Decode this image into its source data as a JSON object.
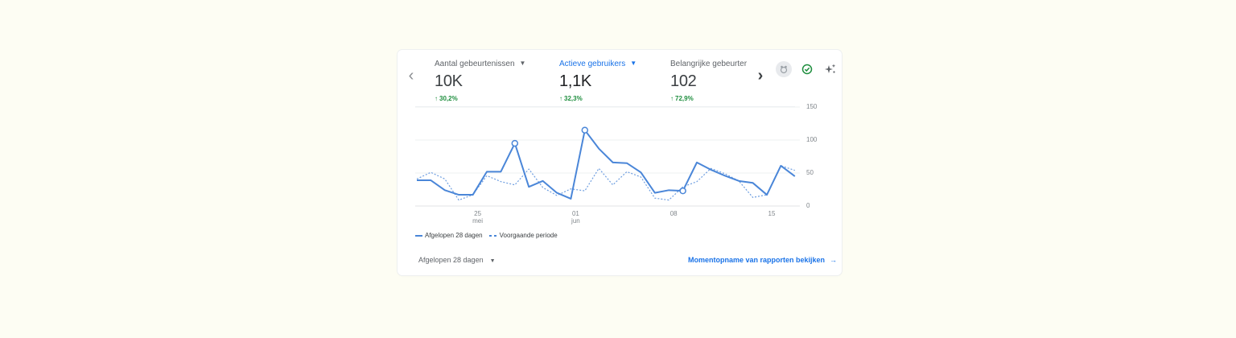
{
  "card": {
    "metrics": [
      {
        "label": "Aantal gebeurtenissen",
        "value": "10K",
        "delta": "30,2%",
        "active": false
      },
      {
        "label": "Actieve gebruikers",
        "value": "1,1K",
        "delta": "32,3%",
        "active": true
      },
      {
        "label": "Belangrijke gebeurter",
        "value": "102",
        "delta": "72,9%",
        "active": false
      }
    ],
    "nav": {
      "prev_icon": "‹",
      "next_icon": "›"
    },
    "caret": "▼",
    "delta_arrow": "↑",
    "icons": [
      "bug-avatar-icon",
      "check-circle-icon",
      "sparkle-insights-icon"
    ],
    "legend": {
      "current": "Afgelopen 28 dagen",
      "previous": "Voorgaande periode"
    },
    "footer": {
      "range_label": "Afgelopen 28 dagen",
      "link_label": "Momentopname van rapporten bekijken",
      "link_arrow": "→"
    }
  },
  "colors": {
    "accent": "#1a73e8",
    "line": "#4a86d8",
    "positive": "#1e8e3e",
    "background": "#fdfdf3"
  },
  "chart_data": {
    "type": "line",
    "title": "Actieve gebruikers",
    "xlabel": "",
    "ylabel": "",
    "ylim": [
      0,
      150
    ],
    "yticks": [
      "0",
      "50",
      "100",
      "150"
    ],
    "xticks": [
      {
        "index": 4,
        "label": "25",
        "sub": "mei"
      },
      {
        "index": 11,
        "label": "01",
        "sub": "jun"
      },
      {
        "index": 18,
        "label": "08",
        "sub": ""
      },
      {
        "index": 25,
        "label": "15",
        "sub": ""
      }
    ],
    "grid": true,
    "legend_position": "bottom-left",
    "x": [
      "21 mei",
      "22 mei",
      "23 mei",
      "24 mei",
      "25 mei",
      "26 mei",
      "27 mei",
      "28 mei",
      "29 mei",
      "30 mei",
      "31 mei",
      "01 jun",
      "02 jun",
      "03 jun",
      "04 jun",
      "05 jun",
      "06 jun",
      "07 jun",
      "08 jun",
      "09 jun",
      "10 jun",
      "11 jun",
      "12 jun",
      "13 jun",
      "14 jun",
      "15 jun",
      "16 jun",
      "17 jun"
    ],
    "series": [
      {
        "name": "Afgelopen 28 dagen",
        "style": "solid",
        "values": [
          39,
          39,
          24,
          17,
          17,
          52,
          52,
          95,
          29,
          38,
          20,
          11,
          115,
          87,
          66,
          65,
          51,
          20,
          24,
          23,
          66,
          55,
          46,
          38,
          35,
          17,
          61,
          45
        ],
        "markers": [
          7,
          12,
          19
        ]
      },
      {
        "name": "Voorgaande periode",
        "style": "dashed",
        "values": [
          41,
          51,
          41,
          9,
          17,
          46,
          37,
          32,
          56,
          28,
          16,
          26,
          23,
          57,
          32,
          52,
          44,
          12,
          9,
          29,
          37,
          57,
          49,
          38,
          13,
          17,
          61,
          54
        ]
      }
    ]
  }
}
